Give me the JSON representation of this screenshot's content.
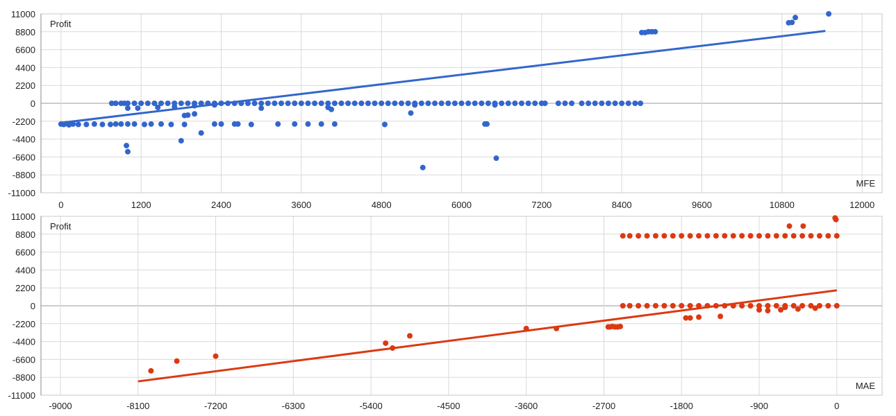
{
  "chart_data": [
    {
      "type": "scatter",
      "title": "",
      "ylabel": "Profit",
      "xlabel": "MFE",
      "xlim": [
        -300,
        12300
      ],
      "ylim": [
        -11000,
        11000
      ],
      "x_ticks": [
        "0",
        "1200",
        "2400",
        "3600",
        "4800",
        "6000",
        "7200",
        "8400",
        "9600",
        "10800",
        "12000"
      ],
      "y_ticks": [
        "11000",
        "8800",
        "6600",
        "4400",
        "2200",
        "0",
        "-2200",
        "-4400",
        "-6600",
        "-8800",
        "-11000"
      ],
      "grid": true,
      "color": "#3366cc",
      "points": [
        [
          0,
          -2550
        ],
        [
          40,
          -2600
        ],
        [
          80,
          -2500
        ],
        [
          120,
          -2650
        ],
        [
          180,
          -2550
        ],
        [
          260,
          -2600
        ],
        [
          380,
          -2600
        ],
        [
          500,
          -2550
        ],
        [
          620,
          -2600
        ],
        [
          740,
          -2600
        ],
        [
          820,
          -2550
        ],
        [
          900,
          -2550
        ],
        [
          1000,
          -2550
        ],
        [
          1100,
          -2550
        ],
        [
          1250,
          -2600
        ],
        [
          1350,
          -2550
        ],
        [
          1500,
          -2550
        ],
        [
          1650,
          -2600
        ],
        [
          1850,
          -2600
        ],
        [
          760,
          0
        ],
        [
          820,
          0
        ],
        [
          900,
          0
        ],
        [
          950,
          0
        ],
        [
          1000,
          0
        ],
        [
          1100,
          0
        ],
        [
          1200,
          0
        ],
        [
          1300,
          0
        ],
        [
          1400,
          0
        ],
        [
          1500,
          0
        ],
        [
          1600,
          0
        ],
        [
          1700,
          0
        ],
        [
          1800,
          0
        ],
        [
          1900,
          0
        ],
        [
          2000,
          0
        ],
        [
          2100,
          0
        ],
        [
          2200,
          0
        ],
        [
          2300,
          0
        ],
        [
          2400,
          0
        ],
        [
          2500,
          0
        ],
        [
          2600,
          0
        ],
        [
          2700,
          0
        ],
        [
          2800,
          0
        ],
        [
          2900,
          0
        ],
        [
          3000,
          0
        ],
        [
          3100,
          0
        ],
        [
          3200,
          0
        ],
        [
          3300,
          0
        ],
        [
          3400,
          0
        ],
        [
          3500,
          0
        ],
        [
          3600,
          0
        ],
        [
          3700,
          0
        ],
        [
          3800,
          0
        ],
        [
          3900,
          0
        ],
        [
          4000,
          0
        ],
        [
          4100,
          0
        ],
        [
          4200,
          0
        ],
        [
          4300,
          0
        ],
        [
          4400,
          0
        ],
        [
          4500,
          0
        ],
        [
          4600,
          0
        ],
        [
          4700,
          0
        ],
        [
          4800,
          0
        ],
        [
          4900,
          0
        ],
        [
          5000,
          0
        ],
        [
          5100,
          0
        ],
        [
          5200,
          0
        ],
        [
          5300,
          0
        ],
        [
          5400,
          0
        ],
        [
          5500,
          0
        ],
        [
          5600,
          0
        ],
        [
          5700,
          0
        ],
        [
          5800,
          0
        ],
        [
          5900,
          0
        ],
        [
          6000,
          0
        ],
        [
          6100,
          0
        ],
        [
          6200,
          0
        ],
        [
          6300,
          0
        ],
        [
          6400,
          0
        ],
        [
          6500,
          0
        ],
        [
          6600,
          0
        ],
        [
          6700,
          0
        ],
        [
          6800,
          0
        ],
        [
          6900,
          0
        ],
        [
          7000,
          0
        ],
        [
          7100,
          0
        ],
        [
          7200,
          0
        ],
        [
          7250,
          0
        ],
        [
          7450,
          0
        ],
        [
          7550,
          0
        ],
        [
          7650,
          0
        ],
        [
          7800,
          0
        ],
        [
          7900,
          0
        ],
        [
          8000,
          0
        ],
        [
          8100,
          0
        ],
        [
          8200,
          0
        ],
        [
          8300,
          0
        ],
        [
          8400,
          0
        ],
        [
          8500,
          0
        ],
        [
          8600,
          0
        ],
        [
          8680,
          0
        ],
        [
          1000,
          -600
        ],
        [
          1150,
          -600
        ],
        [
          1450,
          -500
        ],
        [
          1700,
          -400
        ],
        [
          2000,
          -300
        ],
        [
          2300,
          -200
        ],
        [
          3000,
          -600
        ],
        [
          4000,
          -500
        ],
        [
          4050,
          -750
        ],
        [
          5300,
          -200
        ],
        [
          6500,
          -200
        ],
        [
          980,
          -5200
        ],
        [
          1000,
          -5950
        ],
        [
          1850,
          -1500
        ],
        [
          1900,
          -1450
        ],
        [
          2000,
          -1300
        ],
        [
          1800,
          -4600
        ],
        [
          2100,
          -3650
        ],
        [
          2300,
          -2550
        ],
        [
          2400,
          -2550
        ],
        [
          2600,
          -2550
        ],
        [
          2650,
          -2550
        ],
        [
          2850,
          -2600
        ],
        [
          3250,
          -2550
        ],
        [
          3500,
          -2550
        ],
        [
          3700,
          -2550
        ],
        [
          3900,
          -2550
        ],
        [
          4100,
          -2550
        ],
        [
          4850,
          -2600
        ],
        [
          6350,
          -2550
        ],
        [
          6380,
          -2550
        ],
        [
          5240,
          -1200
        ],
        [
          5420,
          -7900
        ],
        [
          6520,
          -6750
        ],
        [
          8700,
          8700
        ],
        [
          8750,
          8700
        ],
        [
          8800,
          8800
        ],
        [
          8850,
          8800
        ],
        [
          8900,
          8800
        ],
        [
          10900,
          9900
        ],
        [
          10950,
          9950
        ],
        [
          11000,
          10550
        ],
        [
          11500,
          11000
        ]
      ],
      "trendline": {
        "x": [
          0,
          11450
        ],
        "y": [
          -2400,
          8900
        ]
      }
    },
    {
      "type": "scatter",
      "title": "",
      "ylabel": "Profit",
      "xlabel": "MAE",
      "xlim": [
        -9225,
        525
      ],
      "ylim": [
        -11000,
        11000
      ],
      "x_ticks": [
        "-9000",
        "-8100",
        "-7200",
        "-6300",
        "-5400",
        "-4500",
        "-3600",
        "-2700",
        "-1800",
        "-900",
        "0"
      ],
      "y_ticks": [
        "11000",
        "8800",
        "6600",
        "4400",
        "2200",
        "0",
        "-2200",
        "-4400",
        "-6600",
        "-8800",
        "-11000"
      ],
      "grid": true,
      "color": "#dc3912",
      "points": [
        [
          -7950,
          -8000
        ],
        [
          -7650,
          -6800
        ],
        [
          -7200,
          -6200
        ],
        [
          -5230,
          -4600
        ],
        [
          -5150,
          -5200
        ],
        [
          -4950,
          -3700
        ],
        [
          -3600,
          -2800
        ],
        [
          -3250,
          -2800
        ],
        [
          -2650,
          -2600
        ],
        [
          -2630,
          -2600
        ],
        [
          -2600,
          -2550
        ],
        [
          -2570,
          -2600
        ],
        [
          -2540,
          -2600
        ],
        [
          -2510,
          -2550
        ],
        [
          -2480,
          0
        ],
        [
          -2400,
          0
        ],
        [
          -2300,
          0
        ],
        [
          -2200,
          0
        ],
        [
          -2100,
          0
        ],
        [
          -2000,
          0
        ],
        [
          -1900,
          0
        ],
        [
          -1800,
          0
        ],
        [
          -1700,
          0
        ],
        [
          -1600,
          0
        ],
        [
          -1500,
          0
        ],
        [
          -1400,
          0
        ],
        [
          -1300,
          0
        ],
        [
          -1200,
          0
        ],
        [
          -1100,
          0
        ],
        [
          -1000,
          0
        ],
        [
          -900,
          0
        ],
        [
          -800,
          0
        ],
        [
          -700,
          0
        ],
        [
          -600,
          0
        ],
        [
          -500,
          0
        ],
        [
          -400,
          0
        ],
        [
          -300,
          0
        ],
        [
          -200,
          0
        ],
        [
          -100,
          0
        ],
        [
          0,
          0
        ],
        [
          -2480,
          8600
        ],
        [
          -2400,
          8600
        ],
        [
          -2300,
          8600
        ],
        [
          -2200,
          8600
        ],
        [
          -2100,
          8600
        ],
        [
          -2000,
          8600
        ],
        [
          -1900,
          8600
        ],
        [
          -1800,
          8600
        ],
        [
          -1700,
          8600
        ],
        [
          -1600,
          8600
        ],
        [
          -1500,
          8600
        ],
        [
          -1400,
          8600
        ],
        [
          -1300,
          8600
        ],
        [
          -1200,
          8600
        ],
        [
          -1100,
          8600
        ],
        [
          -1000,
          8600
        ],
        [
          -900,
          8600
        ],
        [
          -800,
          8600
        ],
        [
          -700,
          8600
        ],
        [
          -600,
          8600
        ],
        [
          -500,
          8600
        ],
        [
          -400,
          8600
        ],
        [
          -300,
          8600
        ],
        [
          -200,
          8600
        ],
        [
          -100,
          8600
        ],
        [
          0,
          8600
        ],
        [
          -1750,
          -1500
        ],
        [
          -1700,
          -1500
        ],
        [
          -1600,
          -1400
        ],
        [
          -1350,
          -1300
        ],
        [
          -800,
          -600
        ],
        [
          -650,
          -500
        ],
        [
          -600,
          -200
        ],
        [
          -450,
          -400
        ],
        [
          -250,
          -300
        ],
        [
          -900,
          -500
        ],
        [
          -550,
          9800
        ],
        [
          -390,
          9800
        ],
        [
          -20,
          10800
        ],
        [
          -10,
          10600
        ]
      ],
      "trendline": {
        "x": [
          -8100,
          0
        ],
        "y": [
          -9300,
          1900
        ]
      }
    }
  ]
}
